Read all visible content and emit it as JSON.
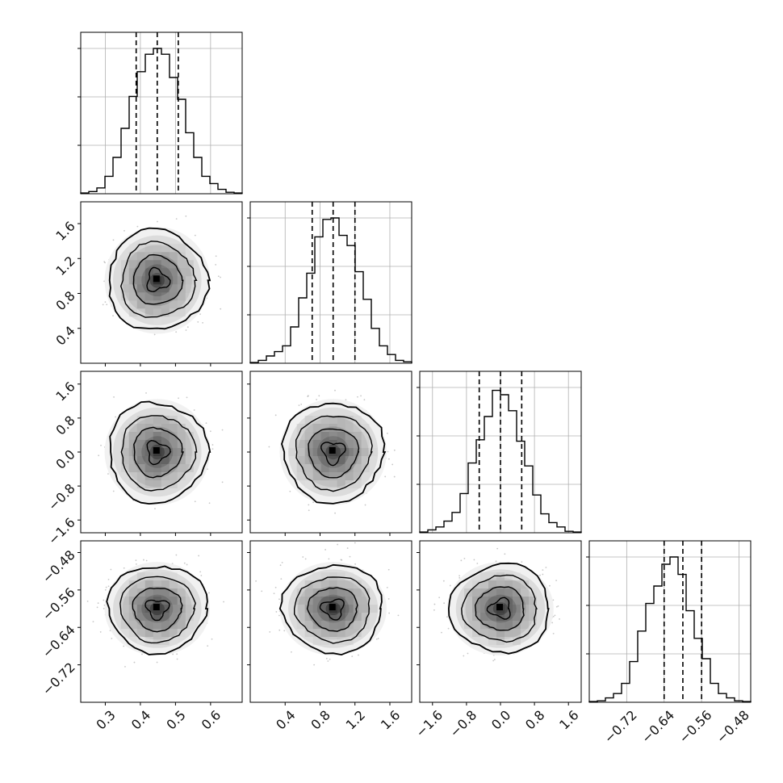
{
  "chart_data": {
    "type": "corner",
    "title": "",
    "grid": true,
    "parameters": [
      {
        "range": [
          0.23,
          0.69
        ],
        "ticks": [
          0.3,
          0.4,
          0.5,
          0.6
        ],
        "tick_labels": [
          "0.3",
          "0.4",
          "0.5",
          "0.6"
        ],
        "quantiles": [
          0.388,
          0.448,
          0.508
        ],
        "hist_bins": [
          0.005,
          0.015,
          0.04,
          0.12,
          0.25,
          0.45,
          0.67,
          0.84,
          0.96,
          1.0,
          0.96,
          0.8,
          0.65,
          0.42,
          0.25,
          0.12,
          0.07,
          0.03,
          0.01,
          0.005
        ]
      },
      {
        "range": [
          0.0,
          1.85
        ],
        "ticks": [
          0.4,
          0.8,
          1.2,
          1.6
        ],
        "tick_labels": [
          "0.4",
          "0.8",
          "1.2",
          "1.6"
        ],
        "quantiles": [
          0.71,
          0.95,
          1.2
        ],
        "hist_bins": [
          0.005,
          0.02,
          0.05,
          0.08,
          0.12,
          0.25,
          0.45,
          0.62,
          0.87,
          0.99,
          1.0,
          0.88,
          0.81,
          0.63,
          0.44,
          0.24,
          0.12,
          0.06,
          0.02,
          0.01
        ]
      },
      {
        "range": [
          -1.9,
          1.9
        ],
        "ticks": [
          -1.6,
          -0.8,
          0.0,
          0.8,
          1.6
        ],
        "tick_labels": [
          "−1.6",
          "−0.8",
          "0.0",
          "0.8",
          "1.6"
        ],
        "quantiles": [
          -0.5,
          0.0,
          0.5
        ],
        "hist_bins": [
          0.005,
          0.02,
          0.04,
          0.08,
          0.14,
          0.27,
          0.48,
          0.64,
          0.8,
          0.98,
          0.95,
          0.84,
          0.63,
          0.46,
          0.26,
          0.13,
          0.07,
          0.04,
          0.01,
          0.005
        ]
      },
      {
        "range": [
          -0.8,
          -0.455
        ],
        "ticks": [
          -0.72,
          -0.64,
          -0.56,
          -0.48
        ],
        "tick_labels": [
          "−0.72",
          "−0.64",
          "−0.56",
          "−0.48"
        ],
        "quantiles": [
          -0.64,
          -0.6,
          -0.56
        ],
        "hist_bins": [
          0.005,
          0.01,
          0.03,
          0.06,
          0.13,
          0.28,
          0.49,
          0.68,
          0.8,
          0.95,
          1.0,
          0.88,
          0.63,
          0.44,
          0.3,
          0.13,
          0.06,
          0.03,
          0.01,
          0.005
        ]
      }
    ]
  }
}
